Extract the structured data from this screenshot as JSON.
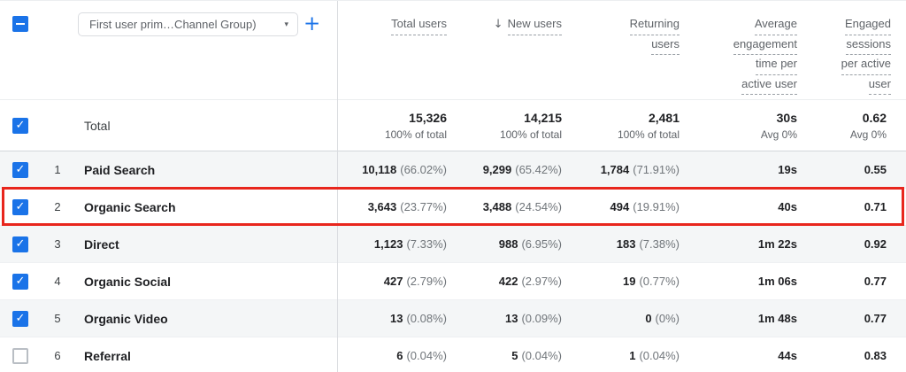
{
  "icons": {
    "check": "✓",
    "sort_desc": "↓",
    "dropdown_arrow": "▾",
    "add": "+"
  },
  "colors": {
    "accent_blue": "#1a73e8",
    "highlight_red": "#e8261d",
    "zebra_gray": "#f4f6f7"
  },
  "header": {
    "dimension_dropdown_label": "First user prim…Channel Group)",
    "columns": [
      {
        "id": "total_users",
        "lines": [
          "Total users"
        ]
      },
      {
        "id": "new_users",
        "lines": [
          "New users"
        ],
        "sorted": "descending"
      },
      {
        "id": "returning_users",
        "lines": [
          "Returning",
          "users"
        ]
      },
      {
        "id": "avg_engagement_time",
        "lines": [
          "Average",
          "engagement",
          "time per",
          "active user"
        ]
      },
      {
        "id": "engaged_sessions",
        "lines": [
          "Engaged",
          "sessions",
          "per active",
          "user"
        ]
      }
    ]
  },
  "totals": {
    "label": "Total",
    "cells": [
      {
        "value": "15,326",
        "sub": "100% of total"
      },
      {
        "value": "14,215",
        "sub": "100% of total"
      },
      {
        "value": "2,481",
        "sub": "100% of total"
      },
      {
        "value": "30s",
        "sub": "Avg 0%"
      },
      {
        "value": "0.62",
        "sub": "Avg 0%"
      }
    ]
  },
  "rows": [
    {
      "index": "1",
      "channel": "Paid Search",
      "checked": true,
      "highlighted": false,
      "cells": [
        {
          "value": "10,118",
          "pct": "(66.02%)"
        },
        {
          "value": "9,299",
          "pct": "(65.42%)"
        },
        {
          "value": "1,784",
          "pct": "(71.91%)"
        },
        {
          "value": "19s"
        },
        {
          "value": "0.55"
        }
      ]
    },
    {
      "index": "2",
      "channel": "Organic Search",
      "checked": true,
      "highlighted": true,
      "cells": [
        {
          "value": "3,643",
          "pct": "(23.77%)"
        },
        {
          "value": "3,488",
          "pct": "(24.54%)"
        },
        {
          "value": "494",
          "pct": "(19.91%)"
        },
        {
          "value": "40s"
        },
        {
          "value": "0.71"
        }
      ]
    },
    {
      "index": "3",
      "channel": "Direct",
      "checked": true,
      "highlighted": false,
      "cells": [
        {
          "value": "1,123",
          "pct": "(7.33%)"
        },
        {
          "value": "988",
          "pct": "(6.95%)"
        },
        {
          "value": "183",
          "pct": "(7.38%)"
        },
        {
          "value": "1m 22s"
        },
        {
          "value": "0.92"
        }
      ]
    },
    {
      "index": "4",
      "channel": "Organic Social",
      "checked": true,
      "highlighted": false,
      "cells": [
        {
          "value": "427",
          "pct": "(2.79%)"
        },
        {
          "value": "422",
          "pct": "(2.97%)"
        },
        {
          "value": "19",
          "pct": "(0.77%)"
        },
        {
          "value": "1m 06s"
        },
        {
          "value": "0.77"
        }
      ]
    },
    {
      "index": "5",
      "channel": "Organic Video",
      "checked": true,
      "highlighted": false,
      "cells": [
        {
          "value": "13",
          "pct": "(0.08%)"
        },
        {
          "value": "13",
          "pct": "(0.09%)"
        },
        {
          "value": "0",
          "pct": "(0%)"
        },
        {
          "value": "1m 48s"
        },
        {
          "value": "0.77"
        }
      ]
    },
    {
      "index": "6",
      "channel": "Referral",
      "checked": false,
      "highlighted": false,
      "cells": [
        {
          "value": "6",
          "pct": "(0.04%)"
        },
        {
          "value": "5",
          "pct": "(0.04%)"
        },
        {
          "value": "1",
          "pct": "(0.04%)"
        },
        {
          "value": "44s"
        },
        {
          "value": "0.83"
        }
      ]
    }
  ]
}
